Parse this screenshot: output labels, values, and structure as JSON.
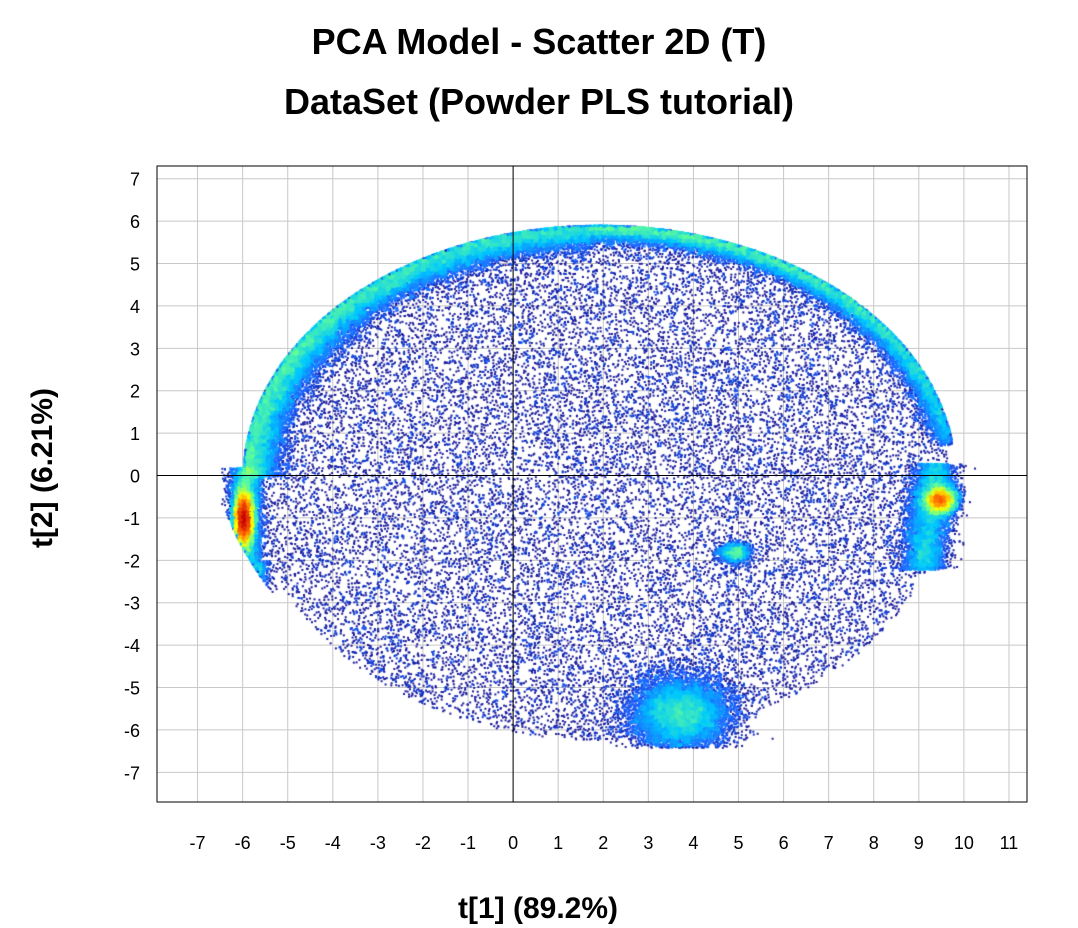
{
  "chart_data": {
    "type": "scatter",
    "title": "PCA Model - Scatter 2D (T)",
    "subtitle": "DataSet (Powder PLS tutorial)",
    "xlabel": "t[1] (89.2%)",
    "ylabel": "t[2] (6.21%)",
    "xlim": [
      -7.9,
      11.4
    ],
    "ylim": [
      -7.7,
      7.3
    ],
    "xticks": [
      -7,
      -6,
      -5,
      -4,
      -3,
      -2,
      -1,
      0,
      1,
      2,
      3,
      4,
      5,
      6,
      7,
      8,
      9,
      10,
      11
    ],
    "yticks": [
      -7,
      -6,
      -5,
      -4,
      -3,
      -2,
      -1,
      0,
      1,
      2,
      3,
      4,
      5,
      6,
      7
    ],
    "grid": true,
    "reference_lines": {
      "x": 0,
      "y": 0
    },
    "point_color": "#1a1a9c",
    "density_colormap": [
      "#00008b",
      "#1e64ff",
      "#00c8ff",
      "#64ff96",
      "#ffff00",
      "#ff6400",
      "#c80000"
    ],
    "dense_clusters": [
      {
        "x": -6.0,
        "y": -1.0
      },
      {
        "x": 9.5,
        "y": -0.5
      }
    ],
    "point_count": 120000
  }
}
